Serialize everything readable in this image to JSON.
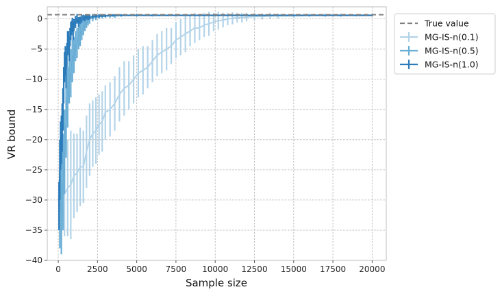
{
  "chart_data": {
    "type": "line",
    "title": "",
    "xlabel": "Sample size",
    "ylabel": "VR bound",
    "xlim": [
      -700,
      20900
    ],
    "ylim": [
      -40,
      2
    ],
    "x_ticks": [
      0,
      2500,
      5000,
      7500,
      10000,
      12500,
      15000,
      17500,
      20000
    ],
    "x_tick_labels": [
      "0",
      "2500",
      "5000",
      "7500",
      "10000",
      "12500",
      "15000",
      "17500",
      "20000"
    ],
    "y_ticks": [
      0,
      -5,
      -10,
      -15,
      -20,
      -25,
      -30,
      -35,
      -40
    ],
    "y_tick_labels": [
      "0",
      "−5",
      "−10",
      "−15",
      "−20",
      "−25",
      "−30",
      "−35",
      "−40"
    ],
    "grid": true,
    "legend_position": "outside-top-right",
    "reference_line": {
      "name": "True value",
      "y": 0.7,
      "color": "#7f7f7f",
      "style": "dashed"
    },
    "series": [
      {
        "name": "MG-IS-n(0.1)",
        "color": "#b3d3e8",
        "x": [
          200,
          400,
          600,
          800,
          1000,
          1200,
          1400,
          1600,
          1800,
          2000,
          2200,
          2400,
          2600,
          2800,
          3000,
          3300,
          3600,
          3900,
          4200,
          4500,
          4800,
          5100,
          5400,
          5700,
          6000,
          6300,
          6600,
          6900,
          7200,
          7500,
          7800,
          8100,
          8400,
          8700,
          9000,
          9300,
          9600,
          9900,
          10200,
          10500,
          10800,
          11100,
          11400,
          11700,
          12000,
          12500,
          13000,
          13500,
          14000,
          15000,
          16000,
          17000,
          18000,
          19000,
          20000
        ],
        "y": [
          -31.5,
          -29.0,
          -28.0,
          -27.5,
          -26.0,
          -25.5,
          -24.5,
          -24.5,
          -22.0,
          -20.0,
          -19.0,
          -18.5,
          -17.5,
          -17.0,
          -15.5,
          -15.0,
          -14.0,
          -12.5,
          -11.5,
          -11.0,
          -10.0,
          -9.0,
          -8.5,
          -8.0,
          -7.0,
          -6.0,
          -5.5,
          -5.0,
          -4.5,
          -3.5,
          -3.0,
          -2.5,
          -2.0,
          -1.5,
          -1.5,
          -1.0,
          -0.8,
          -0.5,
          -0.3,
          -0.2,
          0.0,
          0.1,
          0.2,
          0.2,
          0.3,
          0.4,
          0.4,
          0.5,
          0.5,
          0.5,
          0.6,
          0.6,
          0.6,
          0.6,
          0.6
        ],
        "err": [
          4.0,
          7.0,
          8.0,
          9.0,
          7.0,
          6.5,
          6.5,
          6.0,
          6.0,
          6.0,
          5.5,
          5.5,
          5.0,
          5.0,
          4.5,
          4.5,
          4.5,
          4.5,
          4.5,
          4.0,
          4.0,
          4.0,
          4.0,
          3.5,
          3.5,
          3.5,
          3.5,
          3.5,
          3.0,
          3.0,
          3.0,
          3.0,
          2.5,
          2.5,
          2.0,
          2.0,
          2.0,
          1.5,
          1.5,
          1.2,
          1.0,
          1.0,
          0.8,
          0.8,
          0.7,
          0.6,
          0.5,
          0.5,
          0.4,
          0.3,
          0.3,
          0.3,
          0.3,
          0.2,
          0.2
        ]
      },
      {
        "name": "MG-IS-n(0.5)",
        "color": "#6aaed6",
        "x": [
          100,
          200,
          300,
          400,
          500,
          600,
          700,
          800,
          900,
          1000,
          1100,
          1200,
          1300,
          1400,
          1500,
          1600,
          1700,
          1800,
          1900,
          2000,
          2200,
          2400,
          2600,
          2800,
          3000,
          3300,
          3600,
          4000,
          5000,
          6000,
          8000,
          10000,
          12000,
          15000,
          20000
        ],
        "y": [
          -32.0,
          -30.0,
          -27.0,
          -22.0,
          -17.0,
          -13.0,
          -10.0,
          -9.0,
          -7.0,
          -6.0,
          -4.5,
          -4.0,
          -3.0,
          -2.5,
          -2.0,
          -1.5,
          -1.0,
          -0.5,
          -0.3,
          0.0,
          0.2,
          0.3,
          0.4,
          0.4,
          0.5,
          0.5,
          0.5,
          0.6,
          0.6,
          0.6,
          0.6,
          0.6,
          0.6,
          0.6,
          0.6
        ],
        "err": [
          6.0,
          9.0,
          8.0,
          7.0,
          6.0,
          5.0,
          4.0,
          4.0,
          3.5,
          3.0,
          2.5,
          2.5,
          2.0,
          2.0,
          1.5,
          1.2,
          1.0,
          1.0,
          0.8,
          0.8,
          0.6,
          0.5,
          0.4,
          0.3,
          0.3,
          0.3,
          0.3,
          0.2,
          0.2,
          0.2,
          0.1,
          0.1,
          0.1,
          0.1,
          0.1
        ]
      },
      {
        "name": "MG-IS-n(1.0)",
        "color": "#2b7bba",
        "x": [
          50,
          100,
          150,
          200,
          250,
          300,
          350,
          400,
          450,
          500,
          550,
          600,
          650,
          700,
          750,
          800,
          850,
          900,
          950,
          1000,
          1100,
          1200,
          1300,
          1400,
          1500,
          1600,
          1700,
          1800,
          1900,
          2000,
          2200,
          2400,
          2600,
          2800,
          3000,
          3500,
          4000,
          5000,
          6000,
          8000,
          10000,
          12000,
          15000,
          20000
        ],
        "y": [
          -31.0,
          -25.0,
          -21.0,
          -20.0,
          -18.0,
          -15.0,
          -11.0,
          -8.0,
          -7.0,
          -9.0,
          -6.0,
          -4.0,
          -3.5,
          -5.0,
          -3.0,
          -2.0,
          -1.5,
          -1.0,
          -2.0,
          -1.0,
          -0.5,
          0.0,
          -0.5,
          -0.2,
          0.0,
          0.2,
          0.1,
          0.3,
          0.2,
          0.3,
          0.4,
          0.5,
          0.5,
          0.5,
          0.5,
          0.6,
          0.6,
          0.6,
          0.6,
          0.6,
          0.6,
          0.6,
          0.6,
          0.6
        ],
        "err": [
          4.0,
          5.0,
          4.0,
          4.0,
          4.0,
          3.5,
          3.0,
          2.5,
          2.5,
          2.5,
          2.0,
          2.0,
          1.5,
          2.0,
          1.5,
          1.5,
          1.2,
          1.2,
          1.5,
          1.0,
          1.0,
          0.8,
          0.8,
          0.6,
          0.6,
          0.5,
          0.5,
          0.4,
          0.4,
          0.4,
          0.3,
          0.3,
          0.3,
          0.2,
          0.2,
          0.2,
          0.2,
          0.1,
          0.1,
          0.1,
          0.1,
          0.1,
          0.1,
          0.1
        ]
      }
    ]
  }
}
